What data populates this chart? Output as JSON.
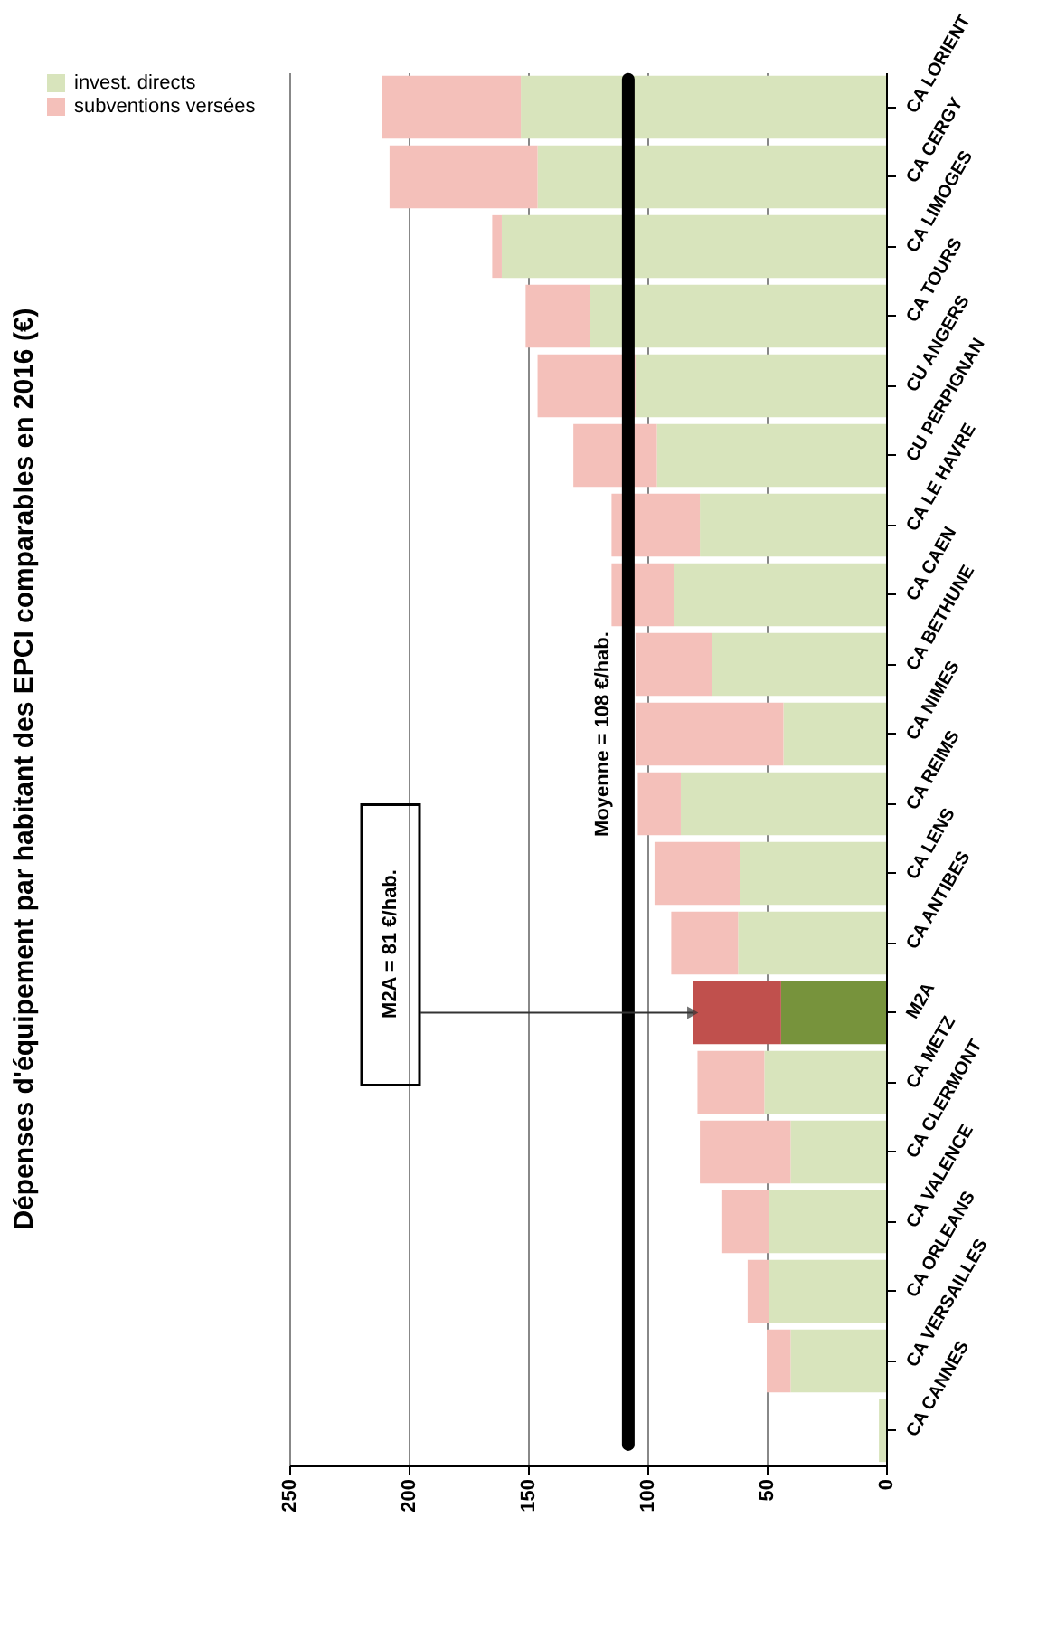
{
  "chart_data": {
    "type": "bar",
    "orientation": "horizontal",
    "stacked": true,
    "title": "Dépenses d'équipement par habitant des EPCI comparables en 2016 (€)",
    "categories": [
      "CA LORIENT",
      "CA CERGY",
      "CA LIMOGES",
      "CA TOURS",
      "CU ANGERS",
      "CU PERPIGNAN",
      "CA LE HAVRE",
      "CA CAEN",
      "CA BETHUNE",
      "CA NIMES",
      "CA REIMS",
      "CA LENS",
      "CA ANTIBES",
      "M2A",
      "CA METZ",
      "CA CLERMONT",
      "CA VALENCE",
      "CA ORLEANS",
      "CA VERSAILLES",
      "CA CANNES"
    ],
    "series": [
      {
        "name": "invest. directs",
        "color": "#d8e4bc",
        "colors": [
          "#d8e4bc",
          "#d8e4bc",
          "#d8e4bc",
          "#d8e4bc",
          "#d8e4bc",
          "#d8e4bc",
          "#d8e4bc",
          "#d8e4bc",
          "#d8e4bc",
          "#d8e4bc",
          "#d8e4bc",
          "#d8e4bc",
          "#d8e4bc",
          "#77933c",
          "#d8e4bc",
          "#d8e4bc",
          "#d8e4bc",
          "#d8e4bc",
          "#d8e4bc",
          "#d8e4bc"
        ],
        "values": [
          153,
          146,
          161,
          124,
          105,
          96,
          78,
          89,
          73,
          43,
          86,
          61,
          62,
          44,
          51,
          40,
          49,
          49,
          40,
          3
        ]
      },
      {
        "name": "subventions versées",
        "color": "#f4c0ba",
        "colors": [
          "#f4c0ba",
          "#f4c0ba",
          "#f4c0ba",
          "#f4c0ba",
          "#f4c0ba",
          "#f4c0ba",
          "#f4c0ba",
          "#f4c0ba",
          "#f4c0ba",
          "#f4c0ba",
          "#f4c0ba",
          "#f4c0ba",
          "#f4c0ba",
          "#c0504d",
          "#f4c0ba",
          "#f4c0ba",
          "#f4c0ba",
          "#f4c0ba",
          "#f4c0ba",
          "#f4c0ba"
        ],
        "values": [
          58,
          62,
          4,
          27,
          41,
          35,
          37,
          26,
          32,
          62,
          18,
          36,
          28,
          37,
          28,
          38,
          20,
          9,
          10,
          0
        ]
      }
    ],
    "xlim": [
      250,
      0
    ],
    "xticks": [
      250,
      200,
      150,
      100,
      50,
      0
    ],
    "grid": "x",
    "legend": "left",
    "ref_lines": [
      {
        "axis": "x",
        "value": 108,
        "label": "Moyenne = 108 €/hab.",
        "color": "#000000"
      }
    ],
    "annotations": [
      "M2A = 81 €/hab."
    ]
  }
}
